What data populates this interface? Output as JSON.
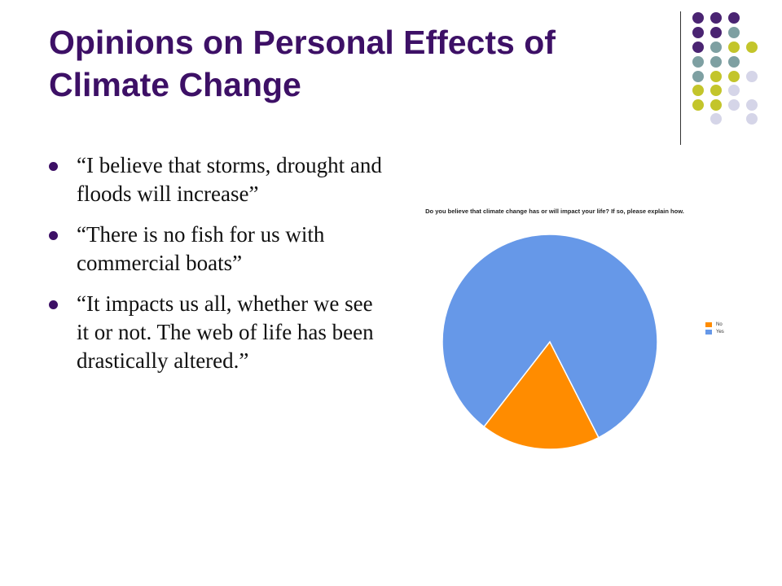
{
  "slide": {
    "title_line1": "Opinions on Personal Effects of",
    "title_line2": "Climate Change",
    "bullets": [
      "“I believe that storms, drought and floods will increase”",
      "“There is no fish for us with commercial boats”",
      "“It impacts us all, whether we see it or not. The web of life has been drastically altered.”"
    ]
  },
  "decor": {
    "dot_colors": {
      "purple": "#4a2472",
      "teal": "#7ea0a2",
      "olive": "#c3c52b",
      "lavender": "#d5d5e8"
    }
  },
  "chart_data": {
    "type": "pie",
    "title": "Do you believe that climate change has or will impact your life? If so, please explain how.",
    "slices": [
      {
        "label": "No",
        "value": 18,
        "color": "#ff8c00"
      },
      {
        "label": "Yes",
        "value": 82,
        "color": "#6698e8"
      }
    ],
    "legend": [
      "No",
      "Yes"
    ],
    "legend_position": "right"
  }
}
